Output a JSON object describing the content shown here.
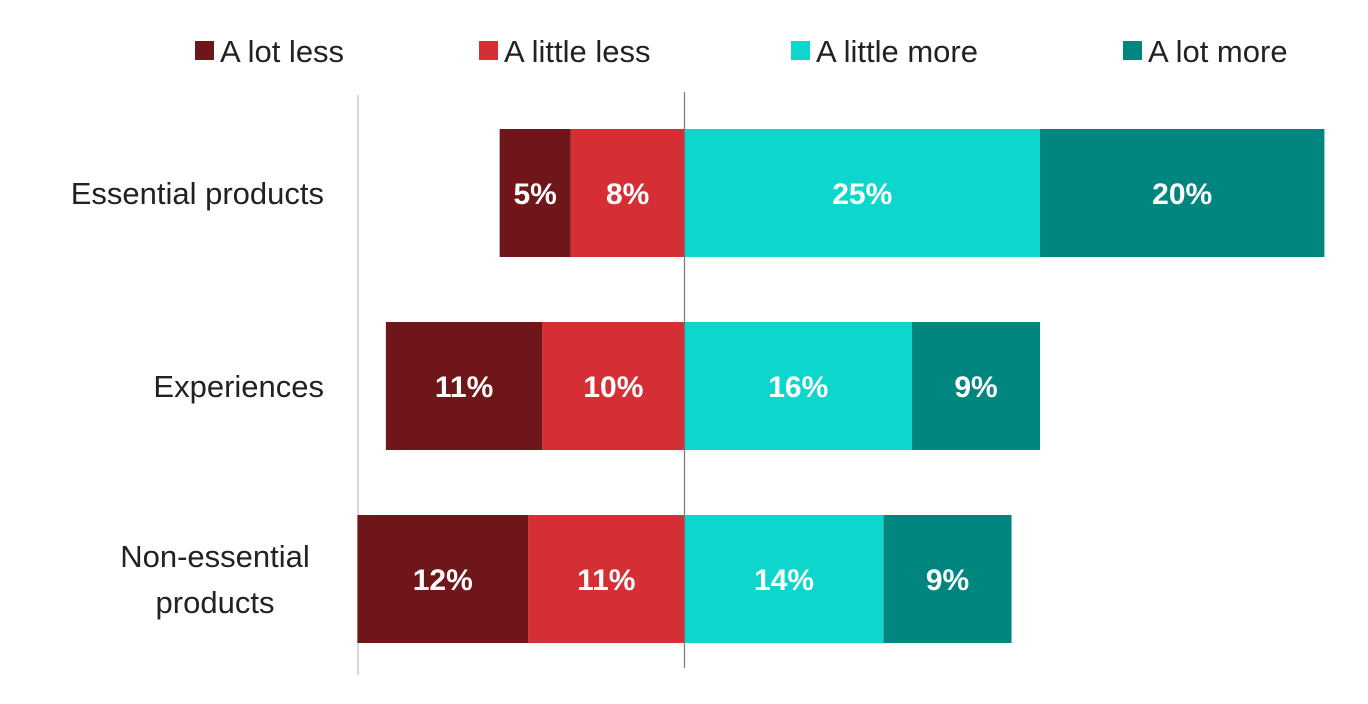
{
  "chart_data": {
    "type": "bar",
    "orientation": "horizontal",
    "stacking": "diverging",
    "categories": [
      "Essential products",
      "Experiences",
      "Non-essential products"
    ],
    "category_lines": [
      [
        "Essential products"
      ],
      [
        "Experiences"
      ],
      [
        "Non-essential",
        "products"
      ]
    ],
    "series": [
      {
        "name": "A lot less",
        "side": "negative",
        "color": "#6e1619",
        "values": [
          5,
          11,
          12
        ],
        "labels": [
          "5%",
          "11%",
          "12%"
        ]
      },
      {
        "name": "A little less",
        "side": "negative",
        "color": "#d52f35",
        "values": [
          8,
          10,
          11
        ],
        "labels": [
          "8%",
          "10%",
          "11%"
        ]
      },
      {
        "name": "A little more",
        "side": "positive",
        "color": "#0dd6cc",
        "values": [
          25,
          16,
          14
        ],
        "labels": [
          "25%",
          "16%",
          "14%"
        ]
      },
      {
        "name": "A lot more",
        "side": "positive",
        "color": "#00857f",
        "values": [
          20,
          9,
          9
        ],
        "labels": [
          "20%",
          "9%",
          "9%"
        ]
      }
    ],
    "legend_position": "top",
    "value_format": "percent",
    "grid": false
  }
}
